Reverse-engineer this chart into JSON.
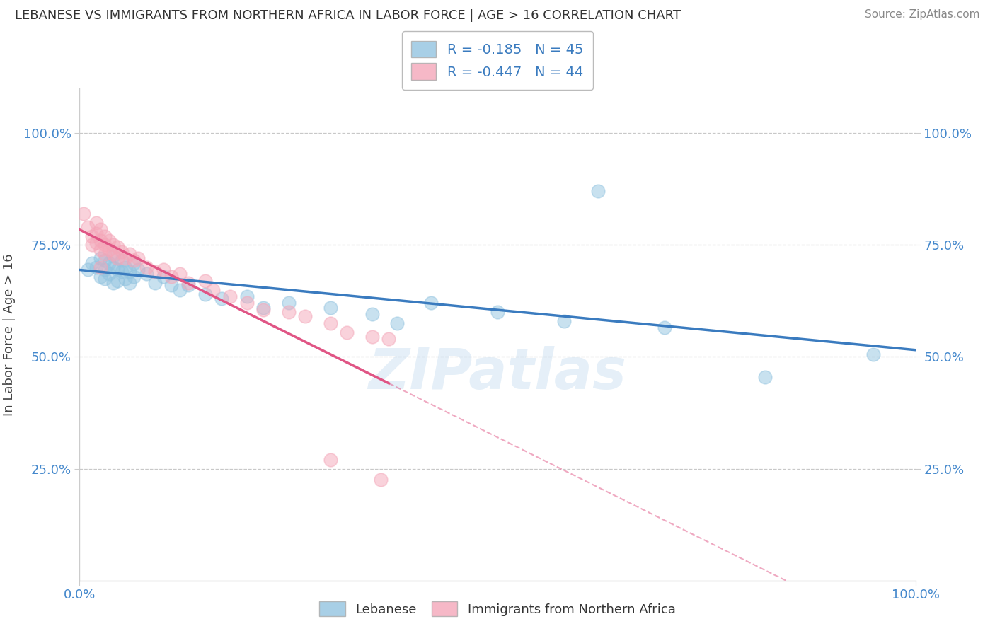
{
  "title": "LEBANESE VS IMMIGRANTS FROM NORTHERN AFRICA IN LABOR FORCE | AGE > 16 CORRELATION CHART",
  "source": "Source: ZipAtlas.com",
  "ylabel": "In Labor Force | Age > 16",
  "xmin": 0.0,
  "xmax": 1.0,
  "ymin": 0.0,
  "ymax": 1.1,
  "ytick_vals": [
    0.25,
    0.5,
    0.75,
    1.0
  ],
  "ytick_labels": [
    "25.0%",
    "50.0%",
    "75.0%",
    "100.0%"
  ],
  "xtick_vals": [
    0.0,
    1.0
  ],
  "xtick_labels": [
    "0.0%",
    "100.0%"
  ],
  "r_blue": -0.185,
  "n_blue": 45,
  "r_pink": -0.447,
  "n_pink": 44,
  "blue_color": "#93c4e0",
  "pink_color": "#f4a7b9",
  "blue_line_color": "#3a7bbf",
  "pink_line_color": "#e05585",
  "blue_scatter": [
    [
      0.01,
      0.695
    ],
    [
      0.015,
      0.71
    ],
    [
      0.02,
      0.7
    ],
    [
      0.025,
      0.72
    ],
    [
      0.025,
      0.68
    ],
    [
      0.03,
      0.715
    ],
    [
      0.03,
      0.695
    ],
    [
      0.03,
      0.675
    ],
    [
      0.035,
      0.71
    ],
    [
      0.035,
      0.685
    ],
    [
      0.04,
      0.725
    ],
    [
      0.04,
      0.7
    ],
    [
      0.04,
      0.665
    ],
    [
      0.045,
      0.695
    ],
    [
      0.045,
      0.67
    ],
    [
      0.05,
      0.715
    ],
    [
      0.05,
      0.69
    ],
    [
      0.055,
      0.7
    ],
    [
      0.055,
      0.675
    ],
    [
      0.06,
      0.69
    ],
    [
      0.06,
      0.665
    ],
    [
      0.065,
      0.71
    ],
    [
      0.065,
      0.68
    ],
    [
      0.07,
      0.695
    ],
    [
      0.08,
      0.685
    ],
    [
      0.09,
      0.665
    ],
    [
      0.1,
      0.68
    ],
    [
      0.11,
      0.66
    ],
    [
      0.12,
      0.65
    ],
    [
      0.13,
      0.66
    ],
    [
      0.15,
      0.64
    ],
    [
      0.17,
      0.63
    ],
    [
      0.2,
      0.635
    ],
    [
      0.22,
      0.61
    ],
    [
      0.25,
      0.62
    ],
    [
      0.3,
      0.61
    ],
    [
      0.35,
      0.595
    ],
    [
      0.38,
      0.575
    ],
    [
      0.42,
      0.62
    ],
    [
      0.5,
      0.6
    ],
    [
      0.58,
      0.58
    ],
    [
      0.62,
      0.87
    ],
    [
      0.7,
      0.565
    ],
    [
      0.82,
      0.455
    ],
    [
      0.95,
      0.505
    ]
  ],
  "pink_scatter": [
    [
      0.005,
      0.82
    ],
    [
      0.01,
      0.79
    ],
    [
      0.015,
      0.77
    ],
    [
      0.015,
      0.75
    ],
    [
      0.02,
      0.8
    ],
    [
      0.02,
      0.775
    ],
    [
      0.02,
      0.755
    ],
    [
      0.025,
      0.785
    ],
    [
      0.025,
      0.76
    ],
    [
      0.025,
      0.74
    ],
    [
      0.03,
      0.77
    ],
    [
      0.03,
      0.75
    ],
    [
      0.03,
      0.73
    ],
    [
      0.035,
      0.76
    ],
    [
      0.035,
      0.74
    ],
    [
      0.04,
      0.75
    ],
    [
      0.04,
      0.73
    ],
    [
      0.045,
      0.745
    ],
    [
      0.045,
      0.72
    ],
    [
      0.05,
      0.735
    ],
    [
      0.055,
      0.72
    ],
    [
      0.06,
      0.73
    ],
    [
      0.065,
      0.715
    ],
    [
      0.07,
      0.72
    ],
    [
      0.08,
      0.7
    ],
    [
      0.09,
      0.69
    ],
    [
      0.1,
      0.695
    ],
    [
      0.11,
      0.68
    ],
    [
      0.12,
      0.685
    ],
    [
      0.13,
      0.665
    ],
    [
      0.15,
      0.67
    ],
    [
      0.16,
      0.65
    ],
    [
      0.18,
      0.635
    ],
    [
      0.2,
      0.62
    ],
    [
      0.22,
      0.605
    ],
    [
      0.25,
      0.6
    ],
    [
      0.27,
      0.59
    ],
    [
      0.3,
      0.575
    ],
    [
      0.32,
      0.555
    ],
    [
      0.35,
      0.545
    ],
    [
      0.37,
      0.54
    ],
    [
      0.3,
      0.27
    ],
    [
      0.36,
      0.225
    ],
    [
      0.025,
      0.7
    ]
  ],
  "watermark": "ZIPatlas",
  "background_color": "#ffffff",
  "grid_color": "#c8c8c8"
}
